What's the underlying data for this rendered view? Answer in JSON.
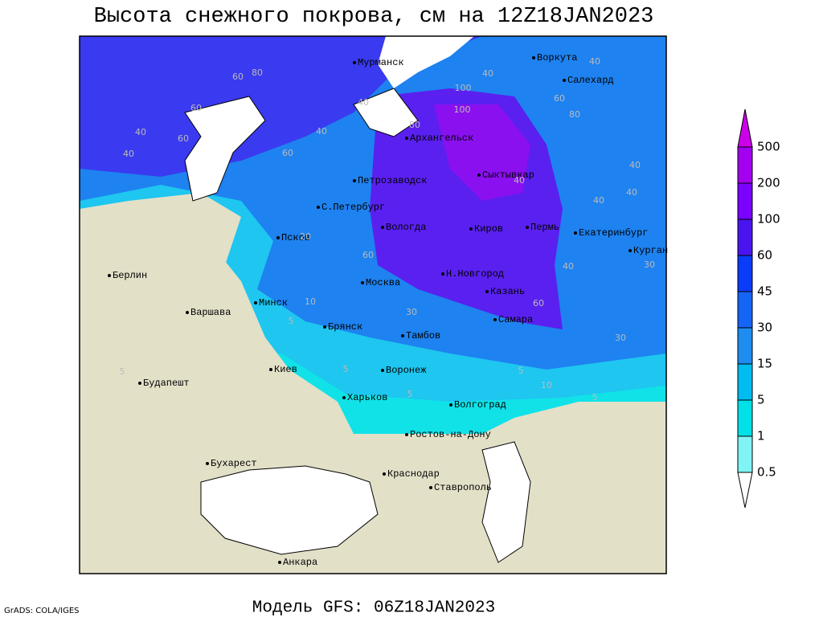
{
  "title": "Высота снежного покрова, см на 12Z18JAN2023",
  "footer": "Модель GFS: 06Z18JAN2023",
  "credit": "GrADS: COLA/IGES",
  "cities": [
    "Мурманск",
    "Воркута",
    "Салехард",
    "Архангельск",
    "Сыктывкар",
    "Петрозаводск",
    "С.Петербург",
    "Вологда",
    "Киров",
    "Пермь",
    "Екатеринбург",
    "Курган",
    "Псков",
    "Берлин",
    "Н.Новгород",
    "Москва",
    "Казань",
    "Минск",
    "Варшава",
    "Самара",
    "Брянск",
    "Тамбов",
    "Киев",
    "Воронеж",
    "Будапешт",
    "Харьков",
    "Волгоград",
    "Ростов-на-Дону",
    "Бухарест",
    "Краснодар",
    "Ставрополь",
    "Анкара"
  ],
  "contour_labels": [
    "60",
    "80",
    "60",
    "40",
    "60",
    "40",
    "60",
    "40",
    "40",
    "100",
    "80",
    "40",
    "60",
    "40",
    "80",
    "40",
    "40",
    "40",
    "40",
    "60",
    "40",
    "30",
    "30",
    "10",
    "5",
    "5",
    "5",
    "5",
    "10",
    "5",
    "5",
    "20",
    "30",
    "60",
    "100"
  ],
  "colorbar": {
    "levels": [
      "0.5",
      "1",
      "5",
      "15",
      "30",
      "45",
      "60",
      "100",
      "200",
      "500"
    ],
    "colors": [
      "#ffffff",
      "#80f4f4",
      "#00e0e8",
      "#00bcf0",
      "#1e8cf0",
      "#1464f5",
      "#0a3cfa",
      "#4a14f0",
      "#7a00ff",
      "#a400f0",
      "#cc00e8"
    ]
  }
}
